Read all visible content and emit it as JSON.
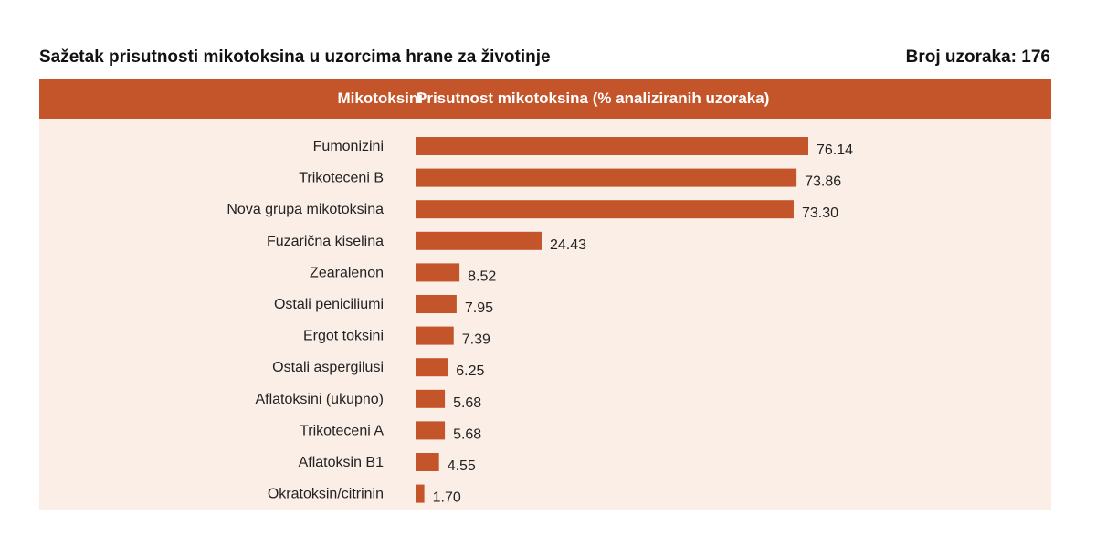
{
  "header": {
    "title": "Sažetak prisutnosti mikotoksina u uzorcima hrane za životinje",
    "sample_count": "Broj uzoraka: 176",
    "col_mycotoxins": "Mikotoksini",
    "col_presence": "Prisutnost mikotoksina (% analiziranih uzoraka)"
  },
  "colors": {
    "bar": "#c4552a",
    "header_band": "#c4552a",
    "panel_bg": "#fbeee7"
  },
  "chart_data": {
    "type": "bar",
    "orientation": "horizontal",
    "title": "Sažetak prisutnosti mikotoksina u uzorcima hrane za životinje",
    "xlabel": "Prisutnost mikotoksina (% analiziranih uzoraka)",
    "ylabel": "Mikotoksini",
    "grid": false,
    "legend": "none",
    "categories": [
      "Fumonizini",
      "Trikoteceni B",
      "Nova grupa mikotoksina",
      "Fuzarična kiselina",
      "Zearalenon",
      "Ostali peniciliumi",
      "Ergot toksini",
      "Ostali aspergilusi",
      "Aflatoksini (ukupno)",
      "Trikoteceni A",
      "Aflatoksin B1",
      "Okratoksin/citrinin"
    ],
    "values": [
      76.14,
      73.86,
      73.3,
      24.43,
      8.52,
      7.95,
      7.39,
      6.25,
      5.68,
      5.68,
      4.55,
      1.7
    ],
    "value_labels": [
      "76.14",
      "73.86",
      "73.30",
      "24.43",
      "8.52",
      "7.95",
      "7.39",
      "6.25",
      "5.68",
      "5.68",
      "4.55",
      "1.70"
    ]
  }
}
